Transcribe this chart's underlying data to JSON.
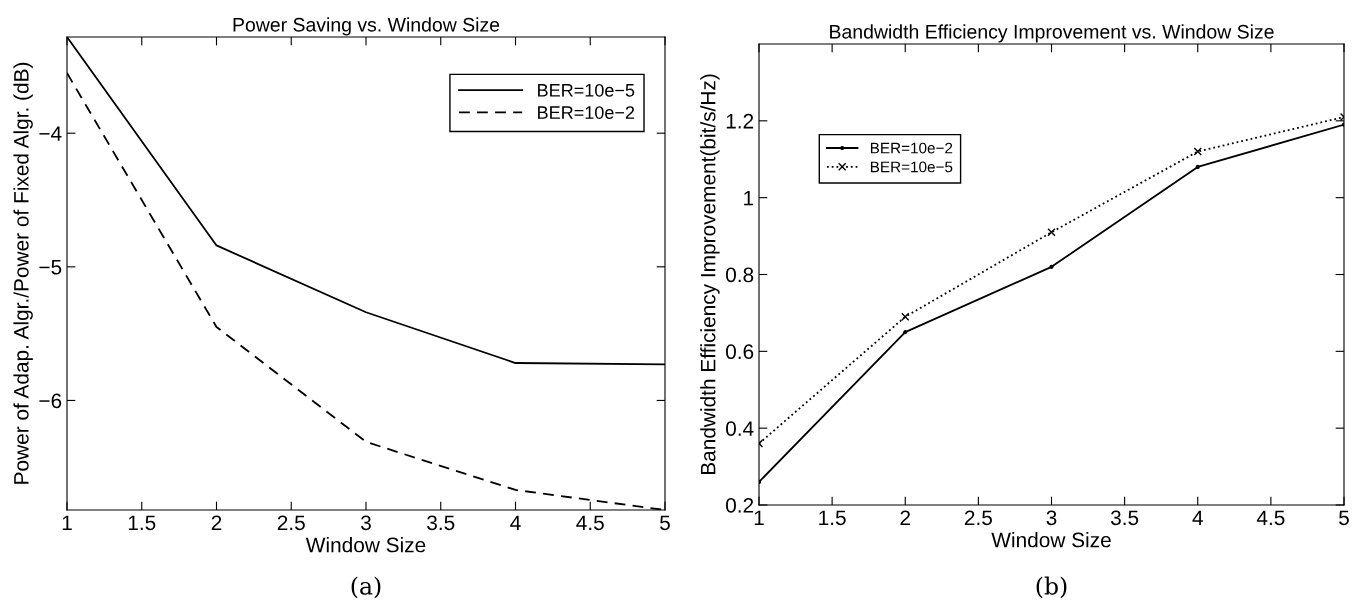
{
  "chart_data": [
    {
      "type": "line",
      "title": "Power Saving vs. Window Size",
      "xlabel": "Window Size",
      "ylabel": "Power of Adap. Algr./Power of Fixed Algr. (dB)",
      "annotations": [
        "(a)"
      ],
      "x": [
        1,
        2,
        3,
        4,
        5
      ],
      "series": [
        {
          "name": "BER=10e−5",
          "color": "#000000",
          "line_style": "solid",
          "values": [
            -3.28,
            -4.84,
            -5.34,
            -5.72,
            -5.73
          ]
        },
        {
          "name": "BER=10e−2",
          "color": "#000000",
          "line_style": "dashed",
          "values": [
            -3.55,
            -5.45,
            -6.31,
            -6.67,
            -6.82
          ]
        }
      ],
      "xlim": [
        1,
        5
      ],
      "xticks": [
        1,
        1.5,
        2,
        2.5,
        3,
        3.5,
        4,
        4.5,
        5
      ],
      "ylim": [
        -6.82,
        -3.28
      ],
      "yticks": [
        {
          "value": -6,
          "label": "−6"
        },
        {
          "value": -5,
          "label": "−5"
        },
        {
          "value": -4,
          "label": "−4"
        }
      ],
      "grid": false,
      "legend": "top right"
    },
    {
      "type": "line",
      "title": "Bandwidth Efficiency Improvement vs. Window Size",
      "xlabel": "Window Size",
      "ylabel": "Bandwidth Efficiency Improvement(bit/s/Hz)",
      "annotations": [
        "(b)"
      ],
      "x": [
        1,
        2,
        3,
        4,
        5
      ],
      "series": [
        {
          "name": "BER=10e−2",
          "color": "#000000",
          "line_style": "solid",
          "marker": "circle",
          "values": [
            0.26,
            0.65,
            0.82,
            1.08,
            1.19
          ]
        },
        {
          "name": "BER=10e−5",
          "color": "#000000",
          "line_style": "dotted",
          "marker": "cross",
          "values": [
            0.36,
            0.69,
            0.91,
            1.12,
            1.21
          ]
        }
      ],
      "xlim": [
        1,
        5
      ],
      "xticks": [
        1,
        1.5,
        2,
        2.5,
        3,
        3.5,
        4,
        4.5,
        5
      ],
      "ylim": [
        0.2,
        1.4
      ],
      "yticks": [
        0.2,
        0.4,
        0.6,
        0.8,
        1,
        1.2
      ],
      "grid": false,
      "legend": "top left"
    }
  ]
}
